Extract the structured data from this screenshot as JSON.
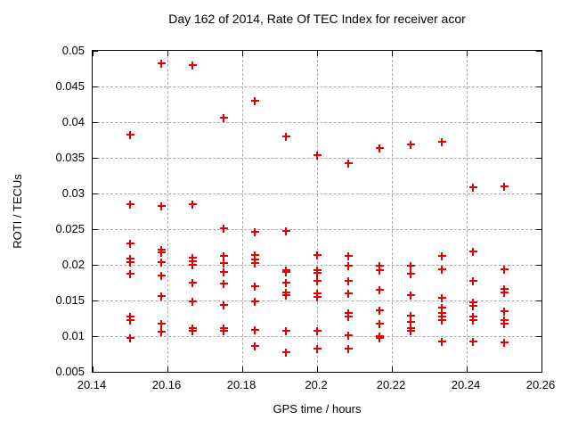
{
  "chart_data": {
    "type": "scatter",
    "title": "Day 162 of 2014, Rate Of TEC Index for receiver acor",
    "xlabel": "GPS time / hours",
    "ylabel": "ROTI / TECUs",
    "xlim": [
      20.14,
      20.26
    ],
    "ylim": [
      0.005,
      0.05
    ],
    "xticks": [
      20.14,
      20.16,
      20.18,
      20.2,
      20.22,
      20.24,
      20.26
    ],
    "xtick_labels": [
      "20.14",
      "20.16",
      "20.18",
      "20.2",
      "20.22",
      "20.24",
      "20.26"
    ],
    "yticks": [
      0.005,
      0.01,
      0.015,
      0.02,
      0.025,
      0.03,
      0.035,
      0.04,
      0.045,
      0.05
    ],
    "ytick_labels": [
      "0.005",
      "0.01",
      "0.015",
      "0.02",
      "0.025",
      "0.03",
      "0.035",
      "0.04",
      "0.045",
      "0.05"
    ],
    "grid": true,
    "legend": "none",
    "marker": "plus",
    "marker_color": "#e60000",
    "series": [
      {
        "name": "ROTI",
        "points": [
          [
            20.15,
            0.0383
          ],
          [
            20.15,
            0.0285
          ],
          [
            20.15,
            0.023
          ],
          [
            20.15,
            0.0209
          ],
          [
            20.15,
            0.0204
          ],
          [
            20.15,
            0.0188
          ],
          [
            20.15,
            0.0128
          ],
          [
            20.15,
            0.0123
          ],
          [
            20.15,
            0.0097
          ],
          [
            20.1583,
            0.0482
          ],
          [
            20.1583,
            0.0283
          ],
          [
            20.1583,
            0.0221
          ],
          [
            20.1583,
            0.0217
          ],
          [
            20.1583,
            0.0204
          ],
          [
            20.1583,
            0.0185
          ],
          [
            20.1583,
            0.0156
          ],
          [
            20.1583,
            0.0118
          ],
          [
            20.1583,
            0.0106
          ],
          [
            20.1667,
            0.048
          ],
          [
            20.1667,
            0.0285
          ],
          [
            20.1667,
            0.021
          ],
          [
            20.1667,
            0.0205
          ],
          [
            20.1667,
            0.02
          ],
          [
            20.1667,
            0.0175
          ],
          [
            20.1667,
            0.0149
          ],
          [
            20.1667,
            0.0111
          ],
          [
            20.1667,
            0.0107
          ],
          [
            20.175,
            0.0406
          ],
          [
            20.175,
            0.0251
          ],
          [
            20.175,
            0.0213
          ],
          [
            20.175,
            0.0203
          ],
          [
            20.175,
            0.019
          ],
          [
            20.175,
            0.0174
          ],
          [
            20.175,
            0.0144
          ],
          [
            20.175,
            0.0111
          ],
          [
            20.175,
            0.0107
          ],
          [
            20.1833,
            0.043
          ],
          [
            20.1833,
            0.0246
          ],
          [
            20.1833,
            0.0214
          ],
          [
            20.1833,
            0.0208
          ],
          [
            20.1833,
            0.0202
          ],
          [
            20.1833,
            0.017
          ],
          [
            20.1833,
            0.0149
          ],
          [
            20.1833,
            0.0109
          ],
          [
            20.1833,
            0.0086
          ],
          [
            20.1917,
            0.038
          ],
          [
            20.1917,
            0.0248
          ],
          [
            20.1917,
            0.0193
          ],
          [
            20.1917,
            0.019
          ],
          [
            20.1917,
            0.0175
          ],
          [
            20.1917,
            0.0161
          ],
          [
            20.1917,
            0.0157
          ],
          [
            20.1917,
            0.0107
          ],
          [
            20.1917,
            0.0078
          ],
          [
            20.2,
            0.0354
          ],
          [
            20.2,
            0.0214
          ],
          [
            20.2,
            0.0193
          ],
          [
            20.2,
            0.0189
          ],
          [
            20.2,
            0.0177
          ],
          [
            20.2,
            0.016
          ],
          [
            20.2,
            0.0155
          ],
          [
            20.2,
            0.0107
          ],
          [
            20.2,
            0.0083
          ],
          [
            20.2083,
            0.0343
          ],
          [
            20.2083,
            0.0213
          ],
          [
            20.2083,
            0.0199
          ],
          [
            20.2083,
            0.0177
          ],
          [
            20.2083,
            0.016
          ],
          [
            20.2083,
            0.0132
          ],
          [
            20.2083,
            0.0128
          ],
          [
            20.2083,
            0.0101
          ],
          [
            20.2083,
            0.0083
          ],
          [
            20.2167,
            0.0364
          ],
          [
            20.2167,
            0.0199
          ],
          [
            20.2167,
            0.0192
          ],
          [
            20.2167,
            0.0165
          ],
          [
            20.2167,
            0.0136
          ],
          [
            20.2167,
            0.0117
          ],
          [
            20.2167,
            0.01
          ],
          [
            20.2167,
            0.0098
          ],
          [
            20.225,
            0.0369
          ],
          [
            20.225,
            0.0199
          ],
          [
            20.225,
            0.0187
          ],
          [
            20.225,
            0.0157
          ],
          [
            20.225,
            0.0129
          ],
          [
            20.225,
            0.012
          ],
          [
            20.225,
            0.0111
          ],
          [
            20.225,
            0.0107
          ],
          [
            20.2333,
            0.0373
          ],
          [
            20.2333,
            0.0212
          ],
          [
            20.2333,
            0.0194
          ],
          [
            20.2333,
            0.0154
          ],
          [
            20.2333,
            0.014
          ],
          [
            20.2333,
            0.0133
          ],
          [
            20.2333,
            0.0127
          ],
          [
            20.2333,
            0.0122
          ],
          [
            20.2333,
            0.0092
          ],
          [
            20.2417,
            0.0309
          ],
          [
            20.2417,
            0.0219
          ],
          [
            20.2417,
            0.0177
          ],
          [
            20.2417,
            0.0148
          ],
          [
            20.2417,
            0.0143
          ],
          [
            20.2417,
            0.0128
          ],
          [
            20.2417,
            0.0122
          ],
          [
            20.2417,
            0.0093
          ],
          [
            20.25,
            0.031
          ],
          [
            20.25,
            0.0194
          ],
          [
            20.25,
            0.0166
          ],
          [
            20.25,
            0.0161
          ],
          [
            20.25,
            0.0135
          ],
          [
            20.25,
            0.0122
          ],
          [
            20.25,
            0.0117
          ],
          [
            20.25,
            0.0091
          ]
        ]
      }
    ]
  }
}
